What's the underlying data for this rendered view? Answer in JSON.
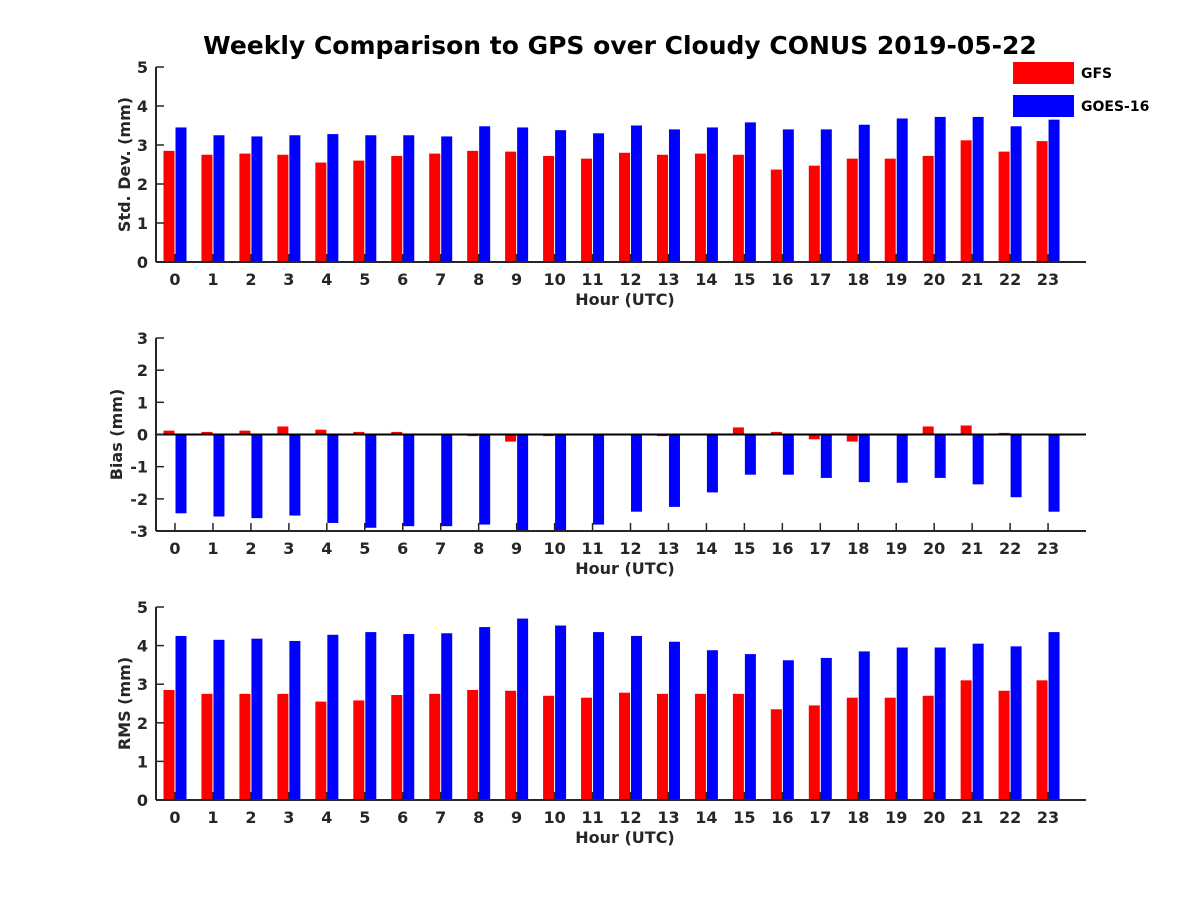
{
  "title": "Weekly Comparison to GPS over Cloudy CONUS 2019-05-22",
  "colors": {
    "GFS": "#ff0000",
    "GOES-16": "#0000ff",
    "axis": "#262626"
  },
  "legend": [
    {
      "name": "GFS",
      "color": "#ff0000"
    },
    {
      "name": "GOES-16",
      "color": "#0000ff"
    }
  ],
  "chart_data": [
    {
      "type": "bar",
      "id": "stddev",
      "xlabel": "Hour (UTC)",
      "ylabel": "Std. Dev. (mm)",
      "ylim": [
        0,
        5
      ],
      "yticks": [
        0,
        1,
        2,
        3,
        4,
        5
      ],
      "categories": [
        "0",
        "1",
        "2",
        "3",
        "4",
        "5",
        "6",
        "7",
        "8",
        "9",
        "10",
        "11",
        "12",
        "13",
        "14",
        "15",
        "16",
        "17",
        "18",
        "19",
        "20",
        "21",
        "22",
        "23"
      ],
      "series": [
        {
          "name": "GFS",
          "values": [
            2.85,
            2.75,
            2.78,
            2.75,
            2.55,
            2.6,
            2.72,
            2.78,
            2.85,
            2.83,
            2.72,
            2.65,
            2.8,
            2.75,
            2.78,
            2.75,
            2.37,
            2.47,
            2.65,
            2.65,
            2.72,
            3.12,
            2.83,
            3.1
          ]
        },
        {
          "name": "GOES-16",
          "values": [
            3.45,
            3.25,
            3.22,
            3.25,
            3.28,
            3.25,
            3.25,
            3.22,
            3.48,
            3.45,
            3.38,
            3.3,
            3.5,
            3.4,
            3.45,
            3.58,
            3.4,
            3.4,
            3.52,
            3.68,
            3.72,
            3.72,
            3.48,
            3.65
          ]
        }
      ]
    },
    {
      "type": "bar",
      "id": "bias",
      "xlabel": "Hour (UTC)",
      "ylabel": "Bias (mm)",
      "ylim": [
        -3,
        3
      ],
      "yticks": [
        -3,
        -2,
        -1,
        0,
        1,
        2,
        3
      ],
      "zero_line": true,
      "categories": [
        "0",
        "1",
        "2",
        "3",
        "4",
        "5",
        "6",
        "7",
        "8",
        "9",
        "10",
        "11",
        "12",
        "13",
        "14",
        "15",
        "16",
        "17",
        "18",
        "19",
        "20",
        "21",
        "22",
        "23"
      ],
      "series": [
        {
          "name": "GFS",
          "values": [
            0.12,
            0.08,
            0.12,
            0.25,
            0.15,
            0.08,
            0.08,
            -0.02,
            -0.05,
            -0.22,
            -0.05,
            0.0,
            0.03,
            -0.05,
            0.0,
            0.22,
            0.08,
            -0.15,
            -0.22,
            0.0,
            0.25,
            0.28,
            0.05,
            0.0
          ]
        },
        {
          "name": "GOES-16",
          "values": [
            -2.45,
            -2.55,
            -2.6,
            -2.52,
            -2.75,
            -2.9,
            -2.85,
            -2.85,
            -2.8,
            -3.0,
            -3.0,
            -2.8,
            -2.4,
            -2.25,
            -1.8,
            -1.25,
            -1.25,
            -1.35,
            -1.48,
            -1.5,
            -1.35,
            -1.55,
            -1.95,
            -2.4
          ]
        }
      ]
    },
    {
      "type": "bar",
      "id": "rms",
      "xlabel": "Hour (UTC)",
      "ylabel": "RMS (mm)",
      "ylim": [
        0,
        5
      ],
      "yticks": [
        0,
        1,
        2,
        3,
        4,
        5
      ],
      "categories": [
        "0",
        "1",
        "2",
        "3",
        "4",
        "5",
        "6",
        "7",
        "8",
        "9",
        "10",
        "11",
        "12",
        "13",
        "14",
        "15",
        "16",
        "17",
        "18",
        "19",
        "20",
        "21",
        "22",
        "23"
      ],
      "series": [
        {
          "name": "GFS",
          "values": [
            2.85,
            2.75,
            2.75,
            2.75,
            2.55,
            2.58,
            2.72,
            2.75,
            2.85,
            2.83,
            2.7,
            2.65,
            2.78,
            2.75,
            2.75,
            2.75,
            2.35,
            2.45,
            2.65,
            2.65,
            2.7,
            3.1,
            2.83,
            3.1
          ]
        },
        {
          "name": "GOES-16",
          "values": [
            4.25,
            4.15,
            4.18,
            4.12,
            4.28,
            4.35,
            4.3,
            4.32,
            4.48,
            4.7,
            4.52,
            4.35,
            4.25,
            4.1,
            3.88,
            3.78,
            3.62,
            3.68,
            3.85,
            3.95,
            3.95,
            4.05,
            3.98,
            4.35
          ]
        }
      ]
    }
  ]
}
